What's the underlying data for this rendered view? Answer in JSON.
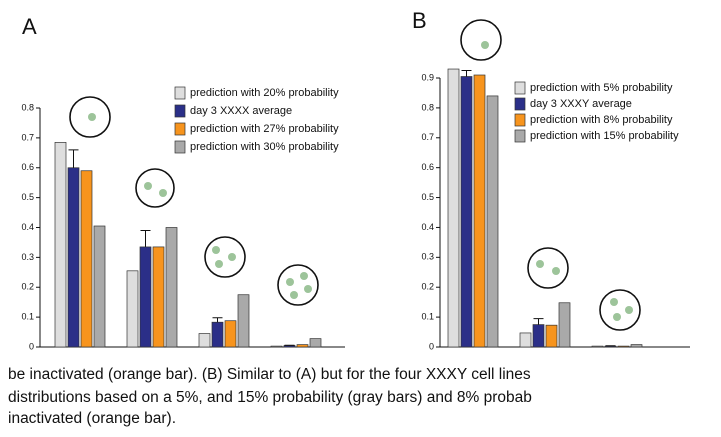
{
  "chart_data": [
    {
      "type": "bar",
      "title": "A",
      "categories": [
        null,
        null,
        null,
        null
      ],
      "series": [
        {
          "name": "prediction with 20% probability",
          "color": "#dedede",
          "values": [
            0.685,
            0.255,
            0.045,
            0.003
          ]
        },
        {
          "name": "day 3 XXXX average",
          "color": "#2b2f88",
          "values": [
            0.6,
            0.335,
            0.083,
            0.005
          ],
          "errors": [
            0.06,
            0.055,
            0.015,
            0.001
          ]
        },
        {
          "name": "prediction with 27% probability",
          "color": "#f7941d",
          "values": [
            0.59,
            0.335,
            0.088,
            0.008
          ]
        },
        {
          "name": "prediction with 30% probability",
          "color": "#a9a9a9",
          "values": [
            0.405,
            0.4,
            0.175,
            0.028
          ]
        }
      ],
      "ylim": [
        0,
        0.8
      ],
      "yticks": [
        0,
        0.1,
        0.2,
        0.3,
        0.4,
        0.5,
        0.6,
        0.7,
        0.8
      ]
    },
    {
      "type": "bar",
      "title": "B",
      "categories": [
        null,
        null,
        null
      ],
      "series": [
        {
          "name": "prediction with 5% probability",
          "color": "#dedede",
          "values": [
            0.93,
            0.047,
            0.003
          ]
        },
        {
          "name": "day 3 XXXY average",
          "color": "#2b2f88",
          "values": [
            0.905,
            0.075,
            0.003
          ],
          "errors": [
            0.02,
            0.02,
            0.001
          ]
        },
        {
          "name": "prediction with 8% probability",
          "color": "#f7941d",
          "values": [
            0.91,
            0.073,
            0.003
          ]
        },
        {
          "name": "prediction with 15% probability",
          "color": "#a9a9a9",
          "values": [
            0.84,
            0.148,
            0.008
          ]
        }
      ],
      "ylim": [
        0,
        0.9
      ],
      "yticks": [
        0,
        0.1,
        0.2,
        0.3,
        0.4,
        0.5,
        0.6,
        0.7,
        0.8,
        0.9
      ]
    }
  ],
  "caption": {
    "lines": [
      "be inactivated (orange bar). (B) Similar to (A) but for the four XXXY cell lines",
      "distributions based on a 5%, and 15% probability (gray bars) and 8% probab",
      "inactivated (orange bar)."
    ]
  }
}
